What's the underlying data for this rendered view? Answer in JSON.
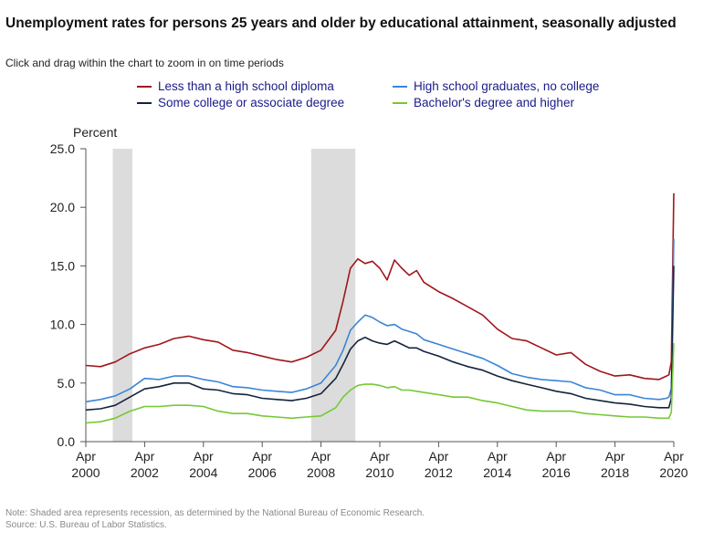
{
  "title": "Unemployment rates for persons 25 years and older by educational attainment, seasonally adjusted",
  "subtitle": "Click and drag within the chart to zoom in on time periods",
  "footnote": {
    "note": "Note: Shaded area represents recession, as determined by the National Bureau of Economic Research.",
    "source": "Source: U.S. Bureau of Labor Statistics."
  },
  "chart_data": {
    "type": "line",
    "ylabel": "Percent",
    "xlabel": "",
    "ylim": [
      0,
      25
    ],
    "yticks": [
      "0.0",
      "5.0",
      "10.0",
      "15.0",
      "20.0",
      "25.0"
    ],
    "xlim": [
      "2000-04",
      "2020-04"
    ],
    "xticks": [
      {
        "top": "Apr",
        "bottom": "2000"
      },
      {
        "top": "Apr",
        "bottom": "2002"
      },
      {
        "top": "Apr",
        "bottom": "2004"
      },
      {
        "top": "Apr",
        "bottom": "2006"
      },
      {
        "top": "Apr",
        "bottom": "2008"
      },
      {
        "top": "Apr",
        "bottom": "2010"
      },
      {
        "top": "Apr",
        "bottom": "2012"
      },
      {
        "top": "Apr",
        "bottom": "2014"
      },
      {
        "top": "Apr",
        "bottom": "2016"
      },
      {
        "top": "Apr",
        "bottom": "2018"
      },
      {
        "top": "Apr",
        "bottom": "2020"
      }
    ],
    "grid": false,
    "legend_position": "top",
    "recessions": [
      {
        "start": "2001-03",
        "end": "2001-11"
      },
      {
        "start": "2007-12",
        "end": "2009-06"
      }
    ],
    "recession_color": "#dcdcdc",
    "series": [
      {
        "name": "Less than a high school diploma",
        "color": "#a0161a",
        "x": [
          "2000-04",
          "2000-10",
          "2001-04",
          "2001-10",
          "2002-04",
          "2002-10",
          "2003-04",
          "2003-10",
          "2004-04",
          "2004-10",
          "2005-04",
          "2005-10",
          "2006-04",
          "2006-10",
          "2007-04",
          "2007-10",
          "2008-04",
          "2008-10",
          "2009-01",
          "2009-04",
          "2009-07",
          "2009-10",
          "2010-01",
          "2010-04",
          "2010-07",
          "2010-10",
          "2011-01",
          "2011-04",
          "2011-07",
          "2011-10",
          "2012-04",
          "2012-10",
          "2013-04",
          "2013-10",
          "2014-04",
          "2014-10",
          "2015-04",
          "2015-10",
          "2016-04",
          "2016-10",
          "2017-04",
          "2017-10",
          "2018-04",
          "2018-10",
          "2019-04",
          "2019-10",
          "2020-01",
          "2020-02",
          "2020-03",
          "2020-04"
        ],
        "values": [
          6.5,
          6.4,
          6.8,
          7.5,
          8.0,
          8.3,
          8.8,
          9.0,
          8.7,
          8.5,
          7.8,
          7.6,
          7.3,
          7.0,
          6.8,
          7.2,
          7.8,
          9.5,
          12.0,
          14.8,
          15.6,
          15.2,
          15.4,
          14.8,
          13.8,
          15.5,
          14.8,
          14.2,
          14.6,
          13.6,
          12.8,
          12.2,
          11.5,
          10.8,
          9.6,
          8.8,
          8.6,
          8.0,
          7.4,
          7.6,
          6.6,
          6.0,
          5.6,
          5.7,
          5.4,
          5.3,
          5.6,
          5.7,
          6.8,
          21.2
        ]
      },
      {
        "name": "High school graduates, no college",
        "color": "#3a85d8",
        "x": [
          "2000-04",
          "2000-10",
          "2001-04",
          "2001-10",
          "2002-04",
          "2002-10",
          "2003-04",
          "2003-10",
          "2004-04",
          "2004-10",
          "2005-04",
          "2005-10",
          "2006-04",
          "2006-10",
          "2007-04",
          "2007-10",
          "2008-04",
          "2008-10",
          "2009-01",
          "2009-04",
          "2009-07",
          "2009-10",
          "2010-01",
          "2010-04",
          "2010-07",
          "2010-10",
          "2011-01",
          "2011-04",
          "2011-07",
          "2011-10",
          "2012-04",
          "2012-10",
          "2013-04",
          "2013-10",
          "2014-04",
          "2014-10",
          "2015-04",
          "2015-10",
          "2016-04",
          "2016-10",
          "2017-04",
          "2017-10",
          "2018-04",
          "2018-10",
          "2019-04",
          "2019-10",
          "2020-01",
          "2020-02",
          "2020-03",
          "2020-04"
        ],
        "values": [
          3.4,
          3.6,
          3.9,
          4.5,
          5.4,
          5.3,
          5.6,
          5.6,
          5.3,
          5.1,
          4.7,
          4.6,
          4.4,
          4.3,
          4.2,
          4.5,
          5.0,
          6.5,
          7.8,
          9.5,
          10.2,
          10.8,
          10.6,
          10.2,
          9.9,
          10.0,
          9.6,
          9.4,
          9.2,
          8.7,
          8.3,
          7.9,
          7.5,
          7.1,
          6.5,
          5.8,
          5.5,
          5.3,
          5.2,
          5.1,
          4.6,
          4.4,
          4.0,
          4.0,
          3.7,
          3.6,
          3.7,
          3.8,
          4.5,
          17.3
        ]
      },
      {
        "name": "Some college or associate degree",
        "color": "#14233c",
        "x": [
          "2000-04",
          "2000-10",
          "2001-04",
          "2001-10",
          "2002-04",
          "2002-10",
          "2003-04",
          "2003-10",
          "2004-04",
          "2004-10",
          "2005-04",
          "2005-10",
          "2006-04",
          "2006-10",
          "2007-04",
          "2007-10",
          "2008-04",
          "2008-10",
          "2009-01",
          "2009-04",
          "2009-07",
          "2009-10",
          "2010-01",
          "2010-04",
          "2010-07",
          "2010-10",
          "2011-01",
          "2011-04",
          "2011-07",
          "2011-10",
          "2012-04",
          "2012-10",
          "2013-04",
          "2013-10",
          "2014-04",
          "2014-10",
          "2015-04",
          "2015-10",
          "2016-04",
          "2016-10",
          "2017-04",
          "2017-10",
          "2018-04",
          "2018-10",
          "2019-04",
          "2019-10",
          "2020-01",
          "2020-02",
          "2020-03",
          "2020-04"
        ],
        "values": [
          2.7,
          2.8,
          3.1,
          3.8,
          4.5,
          4.7,
          5.0,
          5.0,
          4.5,
          4.4,
          4.1,
          4.0,
          3.7,
          3.6,
          3.5,
          3.7,
          4.1,
          5.4,
          6.6,
          7.9,
          8.6,
          8.9,
          8.6,
          8.4,
          8.3,
          8.6,
          8.3,
          8.0,
          8.0,
          7.7,
          7.3,
          6.8,
          6.4,
          6.1,
          5.6,
          5.2,
          4.9,
          4.6,
          4.3,
          4.1,
          3.7,
          3.5,
          3.3,
          3.2,
          3.0,
          2.9,
          2.9,
          2.9,
          3.7,
          15.0
        ]
      },
      {
        "name": "Bachelor's degree and higher",
        "color": "#74c935",
        "x": [
          "2000-04",
          "2000-10",
          "2001-04",
          "2001-10",
          "2002-04",
          "2002-10",
          "2003-04",
          "2003-10",
          "2004-04",
          "2004-10",
          "2005-04",
          "2005-10",
          "2006-04",
          "2006-10",
          "2007-04",
          "2007-10",
          "2008-04",
          "2008-10",
          "2009-01",
          "2009-04",
          "2009-07",
          "2009-10",
          "2010-01",
          "2010-04",
          "2010-07",
          "2010-10",
          "2011-01",
          "2011-04",
          "2011-07",
          "2011-10",
          "2012-04",
          "2012-10",
          "2013-04",
          "2013-10",
          "2014-04",
          "2014-10",
          "2015-04",
          "2015-10",
          "2016-04",
          "2016-10",
          "2017-04",
          "2017-10",
          "2018-04",
          "2018-10",
          "2019-04",
          "2019-10",
          "2020-01",
          "2020-02",
          "2020-03",
          "2020-04"
        ],
        "values": [
          1.6,
          1.7,
          2.0,
          2.6,
          3.0,
          3.0,
          3.1,
          3.1,
          3.0,
          2.6,
          2.4,
          2.4,
          2.2,
          2.1,
          2.0,
          2.1,
          2.2,
          2.9,
          3.8,
          4.4,
          4.8,
          4.9,
          4.9,
          4.8,
          4.6,
          4.7,
          4.4,
          4.4,
          4.3,
          4.2,
          4.0,
          3.8,
          3.8,
          3.5,
          3.3,
          3.0,
          2.7,
          2.6,
          2.6,
          2.6,
          2.4,
          2.3,
          2.2,
          2.1,
          2.1,
          2.0,
          2.0,
          2.0,
          2.5,
          8.4
        ]
      }
    ]
  }
}
